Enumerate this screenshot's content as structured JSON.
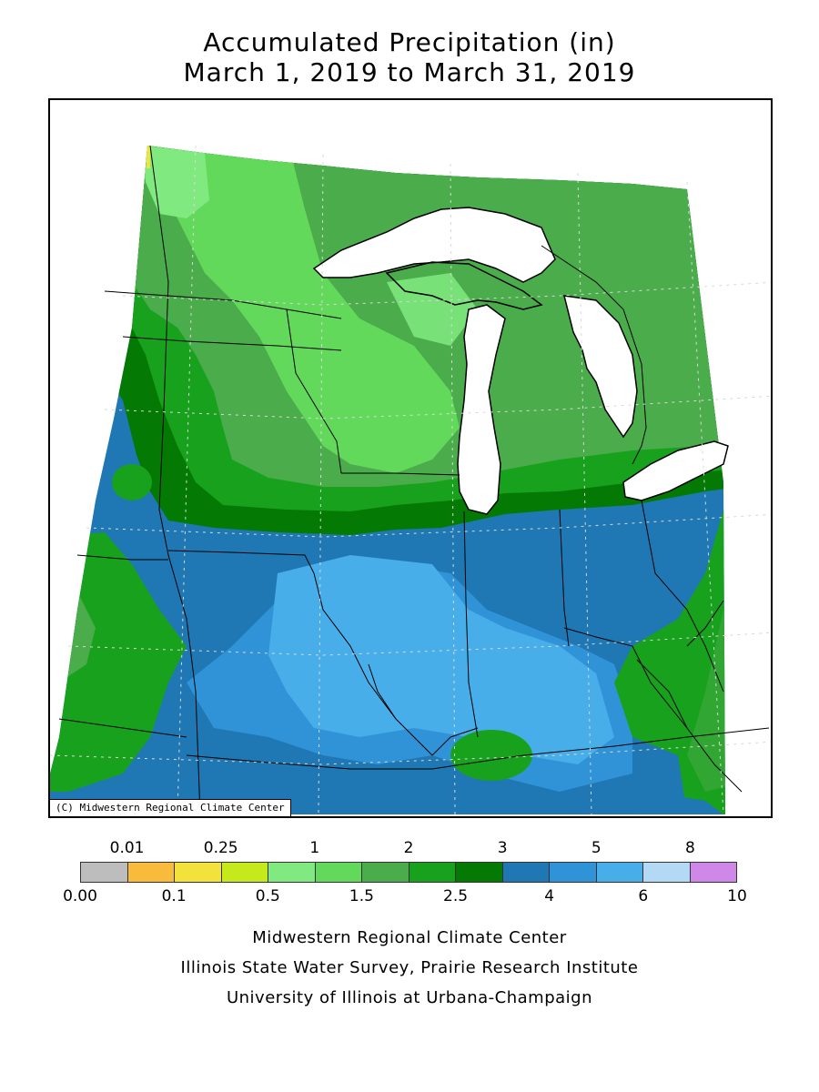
{
  "title": {
    "line1": "Accumulated Precipitation (in)",
    "line2": "March 1, 2019 to March 31, 2019"
  },
  "map": {
    "credit": "(C) Midwestern Regional Climate Center",
    "colors": {
      "lake": "#ffffff",
      "outline": "#000000",
      "grid": "#d8d8d8"
    }
  },
  "legend": {
    "colors": [
      "#bdbdbd",
      "#f9bb3b",
      "#f2e23b",
      "#c5e91a",
      "#80ea80",
      "#63d95b",
      "#4aac4a",
      "#18a11c",
      "#047a04",
      "#1f78b4",
      "#3093d8",
      "#48aeea",
      "#b3d9f4",
      "#cf88e8"
    ],
    "labels_top": [
      "0.01",
      "0.25",
      "1",
      "2",
      "3",
      "5",
      "8"
    ],
    "labels_bottom": [
      "0.00",
      "0.1",
      "0.5",
      "1.5",
      "2.5",
      "4",
      "6",
      "10"
    ]
  },
  "footer": {
    "line1": "Midwestern Regional Climate Center",
    "line2": "Illinois State Water Survey, Prairie Research Institute",
    "line3": "University of Illinois at Urbana-Champaign"
  }
}
